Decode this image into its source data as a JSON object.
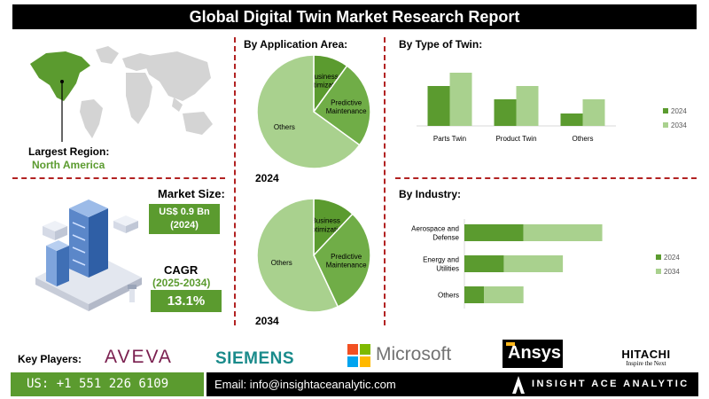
{
  "title": "Global Digital Twin Market Research Report",
  "region": {
    "label": "Largest Region:",
    "value": "North America"
  },
  "market_size": {
    "label": "Market Size:",
    "value": "US$ 0.9 Bn",
    "year": "(2024)"
  },
  "cagr": {
    "label": "CAGR",
    "period": "(2025-2034)",
    "value": "13.1%"
  },
  "application": {
    "title": "By Application Area:",
    "year_2024": "2024",
    "year_2034": "2034"
  },
  "type_of_twin": {
    "title": "By Type of Twin:"
  },
  "industry": {
    "title": "By Industry:"
  },
  "key_players": {
    "label": "Key Players:",
    "names": [
      "AVEVA",
      "SIEMENS",
      "Microsoft",
      "Ansys",
      "HITACHI"
    ],
    "hitachi_tagline": "Inspire the Next"
  },
  "footer": {
    "phone": "US: +1 551 226 6109",
    "email": "Email: info@insightaceanalytic.com",
    "brand": "INSIGHT ACE ANALYTIC"
  },
  "colors": {
    "dark_green": "#5b9b2f",
    "light_green": "#a9d18e",
    "mid_green": "#70ad47",
    "divider": "#b22222"
  },
  "chart_data": [
    {
      "type": "pie",
      "name": "application-2024",
      "labels": [
        "Business Optimization",
        "Predictive Maintenance",
        "Others"
      ],
      "display_labels": [
        [
          "Business",
          "Optimization"
        ],
        [
          "Predictive",
          "Maintenance"
        ],
        [
          "Others"
        ]
      ],
      "values": [
        10,
        25,
        65
      ],
      "colors": [
        "#5b9b2f",
        "#70ad47",
        "#a9d18e"
      ]
    },
    {
      "type": "pie",
      "name": "application-2034",
      "labels": [
        "Business Optimization",
        "Predictive Maintenance",
        "Others"
      ],
      "display_labels": [
        [
          "Business",
          "Optimization"
        ],
        [
          "Predictive",
          "Maintenance"
        ],
        [
          "Others"
        ]
      ],
      "values": [
        12,
        31,
        57
      ],
      "colors": [
        "#5b9b2f",
        "#70ad47",
        "#a9d18e"
      ]
    },
    {
      "type": "bar",
      "name": "type-of-twin",
      "categories": [
        "Parts Twin",
        "Product Twin",
        "Others"
      ],
      "series": [
        {
          "name": "2024",
          "values": [
            45,
            30,
            14
          ],
          "color": "#5b9b2f"
        },
        {
          "name": "2034",
          "values": [
            60,
            45,
            30
          ],
          "color": "#a9d18e"
        }
      ],
      "ylim": [
        0,
        70
      ],
      "legend": "right"
    },
    {
      "type": "bar",
      "orientation": "horizontal",
      "stacked": true,
      "name": "industry",
      "categories": [
        "Aerospace and Defense",
        "Energy and Utilities",
        "Others"
      ],
      "display_categories": [
        [
          "Aerospace and",
          "Defense"
        ],
        [
          "Energy and",
          "Utilities"
        ],
        [
          "Others"
        ]
      ],
      "series": [
        {
          "name": "2024",
          "values": [
            6,
            4,
            2
          ],
          "color": "#5b9b2f"
        },
        {
          "name": "2034",
          "values": [
            8,
            6,
            4
          ],
          "color": "#a9d18e"
        }
      ],
      "xlim": [
        0,
        18
      ],
      "legend": "right"
    }
  ]
}
